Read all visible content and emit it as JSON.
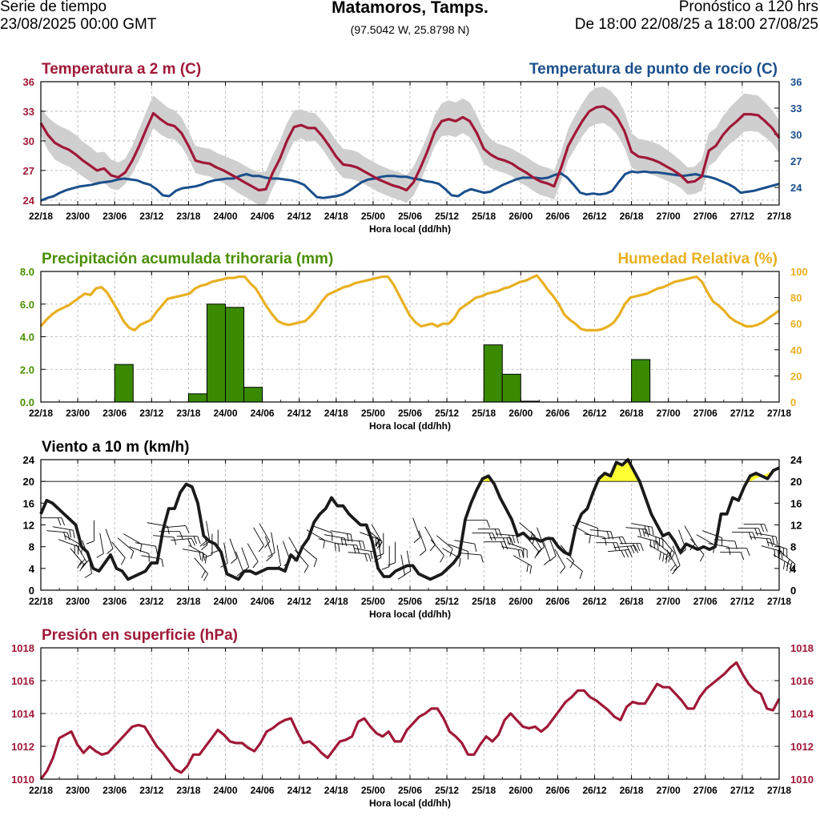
{
  "header": {
    "left_line1": "Serie de tiempo",
    "left_line2": "23/08/2025 00:00 GMT",
    "title": "Matamoros, Tamps.",
    "coords": "(97.5042 W, 25.8798 N)",
    "right_line1": "Pronóstico a 120 hrs",
    "right_line2": "De 18:00 22/08/25 a 18:00 27/08/25"
  },
  "colors": {
    "temp": "#a01838",
    "dew": "#1a4f8c",
    "precip": "#3a8a00",
    "precip_text": "#4a8f00",
    "rh": "#e8b020",
    "wind": "#1a1a1a",
    "highlight": "#ffff33",
    "band": "#cfcfcf",
    "pressure": "#a01838"
  },
  "chart_data": [
    {
      "type": "line",
      "title": "Temperatura a 2 m (C)",
      "title_right": "Temperatura de punto de rocío (C)",
      "xlabel": "Hora local (dd/hh)",
      "x_ticks": [
        "22/18",
        "23/00",
        "23/06",
        "23/12",
        "23/18",
        "24/00",
        "24/06",
        "24/12",
        "24/18",
        "25/00",
        "25/06",
        "25/12",
        "25/18",
        "26/00",
        "26/06",
        "26/12",
        "26/18",
        "27/00",
        "27/06",
        "27/12",
        "27/18"
      ],
      "ylim": [
        23.5,
        36
      ],
      "y_ticks": [
        24,
        27,
        30,
        33,
        36
      ],
      "ylim_right": [
        22,
        36
      ],
      "y_ticks_right": [
        24,
        27,
        30,
        33,
        36
      ],
      "grid": true,
      "series": [
        {
          "name": "Temperatura a 2 m",
          "axis": "left",
          "values": [
            31.8,
            30.6,
            29.8,
            29.4,
            29.1,
            28.6,
            28.0,
            27.5,
            27.0,
            27.2,
            26.5,
            26.3,
            26.8,
            28.0,
            29.5,
            31.2,
            32.8,
            32.2,
            31.7,
            31.5,
            30.8,
            29.5,
            28.0,
            27.8,
            27.7,
            27.3,
            27.0,
            26.6,
            26.2,
            25.8,
            25.4,
            25.0,
            25.1,
            26.8,
            28.2,
            30.0,
            31.4,
            31.6,
            31.3,
            31.3,
            30.5,
            29.5,
            28.4,
            27.6,
            27.5,
            27.3,
            26.9,
            26.5,
            26.1,
            25.8,
            25.5,
            25.3,
            25.0,
            25.8,
            27.3,
            29.0,
            30.9,
            32.0,
            32.2,
            32.0,
            32.4,
            32.0,
            30.8,
            29.2,
            28.6,
            28.2,
            28.0,
            27.7,
            27.2,
            26.8,
            26.3,
            25.9,
            25.7,
            25.4,
            27.3,
            29.5,
            30.8,
            32.0,
            33.0,
            33.4,
            33.5,
            33.1,
            32.3,
            31.0,
            28.9,
            28.4,
            28.3,
            28.1,
            27.8,
            27.4,
            27.0,
            26.5,
            25.8,
            25.9,
            26.4,
            29.0,
            29.5,
            30.6,
            31.4,
            32.0,
            32.7,
            32.7,
            32.6,
            32.0,
            31.3,
            30.3
          ]
        },
        {
          "name": "Temperatura de punto de rocío",
          "axis": "right",
          "values": [
            22.5,
            22.8,
            23.0,
            23.4,
            23.7,
            23.9,
            24.1,
            24.2,
            24.3,
            24.5,
            24.6,
            24.7,
            24.9,
            25.0,
            24.9,
            24.8,
            24.5,
            24.3,
            23.8,
            23.1,
            23.0,
            23.6,
            23.9,
            24.0,
            24.1,
            24.3,
            24.6,
            24.8,
            24.9,
            25.0,
            25.0,
            25.3,
            25.5,
            25.3,
            25.3,
            25.1,
            25.0,
            25.0,
            24.9,
            24.8,
            24.6,
            24.3,
            23.6,
            22.9,
            22.8,
            22.9,
            23.0,
            23.2,
            23.6,
            24.1,
            24.6,
            24.9,
            25.0,
            25.2,
            25.3,
            25.3,
            25.2,
            25.2,
            25.0,
            24.9,
            24.7,
            24.6,
            24.4,
            23.8,
            23.1,
            23.0,
            23.5,
            23.8,
            23.6,
            23.4,
            23.5,
            23.9,
            24.3,
            24.6,
            24.9,
            25.1,
            25.1,
            25.1,
            25.0,
            25.1,
            25.4,
            25.6,
            25.1,
            24.3,
            23.4,
            23.2,
            23.3,
            23.2,
            23.3,
            23.6,
            24.6,
            25.5,
            25.8,
            25.7,
            25.8,
            25.7,
            25.7,
            25.6,
            25.5,
            25.4,
            25.3,
            25.4,
            25.5,
            25.3,
            25.2,
            25.0,
            24.7,
            24.4,
            24.0,
            23.4,
            23.5,
            23.6,
            23.8,
            24.0,
            24.2,
            24.4
          ]
        }
      ],
      "band_spread": [
        1.5,
        1.8,
        2.0,
        2.0,
        2.0,
        2.0,
        1.9,
        1.9,
        1.8,
        1.7,
        1.6,
        1.5,
        1.4,
        1.5,
        1.7,
        1.8,
        1.8,
        1.8,
        1.7,
        1.6,
        1.6,
        1.5,
        1.5,
        1.5,
        1.5,
        1.5,
        1.5,
        1.6,
        1.7,
        1.7,
        1.7,
        1.8,
        1.8,
        1.8,
        1.8,
        1.8,
        1.7,
        1.6,
        1.6,
        1.5,
        1.5,
        1.6,
        1.6,
        1.6,
        1.6,
        1.6,
        1.5,
        1.5,
        1.5,
        1.5,
        1.5,
        1.5,
        1.5,
        1.6,
        1.6,
        1.6,
        1.7,
        1.8,
        1.9,
        1.9,
        1.9,
        1.9,
        1.8,
        1.8,
        1.6,
        1.5,
        1.5,
        1.5,
        1.6,
        1.6,
        1.6,
        1.6,
        1.6,
        1.6,
        1.6,
        1.7,
        1.8,
        1.8,
        1.9,
        2.0,
        2.0,
        2.0,
        2.0,
        2.0,
        1.9,
        1.8,
        1.8,
        1.8,
        1.8,
        1.7,
        1.6,
        1.5,
        1.5,
        1.5,
        1.7,
        1.8,
        1.8,
        1.9,
        2.0,
        2.1,
        2.1,
        2.0,
        2.0,
        1.9,
        1.8,
        1.8,
        1.7,
        1.7
      ]
    },
    {
      "type": "bar",
      "title": "Precipitación acumulada trihoraria (mm)",
      "title_right": "Humedad Relativa (%)",
      "xlabel": "Hora local (dd/hh)",
      "x_ticks": [
        "22/18",
        "23/00",
        "23/06",
        "23/12",
        "23/18",
        "24/00",
        "24/06",
        "24/12",
        "24/18",
        "25/00",
        "25/06",
        "25/12",
        "25/18",
        "26/00",
        "26/06",
        "26/12",
        "26/18",
        "27/00",
        "27/06",
        "27/12",
        "27/18"
      ],
      "ylim": [
        0,
        8
      ],
      "y_ticks": [
        "0.0",
        "2.0",
        "4.0",
        "6.0",
        "8.0"
      ],
      "ylim_right": [
        0,
        100
      ],
      "y_ticks_right": [
        0,
        20,
        40,
        60,
        80,
        100
      ],
      "bars": [
        {
          "start_hour": 12,
          "value": 2.3
        },
        {
          "start_hour": 24,
          "value": 0.5
        },
        {
          "start_hour": 27,
          "value": 6.0
        },
        {
          "start_hour": 30,
          "value": 5.8
        },
        {
          "start_hour": 33,
          "value": 0.9
        },
        {
          "start_hour": 72,
          "value": 3.5
        },
        {
          "start_hour": 75,
          "value": 1.7
        },
        {
          "start_hour": 78,
          "value": 0.05
        },
        {
          "start_hour": 96,
          "value": 2.6
        }
      ],
      "rh_series": [
        {
          "name": "Humedad Relativa",
          "axis": "right",
          "values": [
            58,
            63,
            67,
            70,
            72,
            74,
            77,
            80,
            83,
            82,
            87,
            88,
            84,
            77,
            70,
            62,
            57,
            55,
            59,
            61,
            63,
            69,
            74,
            79,
            80,
            81,
            82,
            83,
            87,
            89,
            90,
            92,
            93,
            94,
            95,
            95,
            96,
            96,
            91,
            87,
            80,
            73,
            67,
            62,
            60,
            59,
            60,
            61,
            62,
            66,
            71,
            77,
            82,
            84,
            86,
            88,
            89,
            91,
            92,
            93,
            94,
            95,
            96,
            96,
            90,
            82,
            74,
            66,
            61,
            58,
            59,
            60,
            58,
            60,
            60,
            64,
            71,
            74,
            77,
            80,
            81,
            83,
            84,
            85,
            87,
            88,
            90,
            92,
            93,
            95,
            97,
            92,
            86,
            81,
            75,
            67,
            63,
            60,
            56,
            55,
            55,
            55,
            56,
            58,
            61,
            67,
            75,
            80,
            81,
            82,
            83,
            85,
            87,
            88,
            90,
            92,
            93,
            94,
            95,
            96,
            92,
            84,
            77,
            74,
            70,
            65,
            62,
            60,
            58,
            58,
            59,
            61,
            64,
            67,
            70
          ]
        }
      ]
    },
    {
      "type": "line",
      "title": "Viento a 10 m (km/h)",
      "xlabel": "Hora local (dd/hh)",
      "x_ticks": [
        "22/18",
        "23/00",
        "23/06",
        "23/12",
        "23/18",
        "24/00",
        "24/06",
        "24/12",
        "24/18",
        "25/00",
        "25/06",
        "25/12",
        "25/18",
        "26/00",
        "26/06",
        "26/12",
        "26/18",
        "27/00",
        "27/06",
        "27/12",
        "27/18"
      ],
      "ylim": [
        0,
        24
      ],
      "y_ticks": [
        0,
        4,
        8,
        12,
        16,
        20,
        24
      ],
      "threshold": 20,
      "series": [
        {
          "name": "Viento a 10 m",
          "values": [
            14,
            16.5,
            16,
            15,
            14,
            13,
            12,
            8,
            7,
            4,
            3.5,
            5,
            6.5,
            4,
            3.5,
            2,
            2.5,
            3,
            3.5,
            5,
            5,
            11,
            15,
            15,
            18,
            19.5,
            19,
            16,
            10,
            9,
            8.5,
            7,
            3,
            2.5,
            2,
            3.5,
            3.5,
            3,
            3.5,
            4,
            4,
            4,
            3.5,
            6.5,
            5.5,
            8,
            9.5,
            12.5,
            14,
            15,
            17,
            15.5,
            15.5,
            14,
            13,
            12,
            12,
            9,
            4,
            2.5,
            2.5,
            3.5,
            4,
            4.5,
            4.5,
            3,
            2.5,
            2,
            2.5,
            3,
            4,
            5,
            6.5,
            13,
            16,
            18.5,
            20.5,
            21,
            19.5,
            17,
            15,
            13,
            10,
            10.5,
            9.5,
            9.5,
            9,
            9.5,
            9.5,
            8,
            7,
            6.5,
            11.5,
            14,
            15,
            18,
            20.5,
            21.5,
            21,
            23.5,
            23,
            24,
            22,
            20,
            17,
            14,
            12,
            10,
            10.5,
            9,
            7,
            8.5,
            8,
            7.5,
            8,
            7.5,
            8,
            14,
            14,
            17,
            16.5,
            19,
            21,
            21.5,
            21,
            20.5,
            22,
            22.5
          ]
        }
      ]
    },
    {
      "type": "line",
      "title": "Presión en superficie (hPa)",
      "xlabel": "Hora local (dd/hh)",
      "x_ticks": [
        "22/18",
        "23/00",
        "23/06",
        "23/12",
        "23/18",
        "24/00",
        "24/06",
        "24/12",
        "24/18",
        "25/00",
        "25/06",
        "25/12",
        "25/18",
        "26/00",
        "26/06",
        "26/12",
        "26/18",
        "27/00",
        "27/06",
        "27/12",
        "27/18"
      ],
      "ylim": [
        1010,
        1018
      ],
      "y_ticks": [
        1010,
        1012,
        1014,
        1016,
        1018
      ],
      "grid": true,
      "series": [
        {
          "name": "Presión en superficie",
          "values": [
            1010,
            1010.5,
            1011.3,
            1012.5,
            1012.7,
            1012.9,
            1012.1,
            1011.6,
            1012.0,
            1011.7,
            1011.5,
            1011.6,
            1012.0,
            1012.4,
            1012.8,
            1013.2,
            1013.3,
            1013.2,
            1012.6,
            1012.0,
            1011.6,
            1011.1,
            1010.6,
            1010.4,
            1010.8,
            1011.5,
            1011.5,
            1012.0,
            1012.5,
            1013.0,
            1012.7,
            1012.3,
            1012.2,
            1012.2,
            1011.9,
            1011.7,
            1012.2,
            1012.9,
            1013.1,
            1013.4,
            1013.6,
            1013.7,
            1012.9,
            1012.2,
            1012.3,
            1012.0,
            1011.6,
            1011.3,
            1011.8,
            1012.3,
            1012.4,
            1012.6,
            1013.5,
            1013.7,
            1013.2,
            1012.8,
            1012.6,
            1012.9,
            1012.3,
            1012.3,
            1013.0,
            1013.4,
            1013.8,
            1014.0,
            1014.3,
            1014.3,
            1013.7,
            1012.9,
            1012.6,
            1012.2,
            1011.5,
            1011.5,
            1012.1,
            1012.6,
            1012.3,
            1012.7,
            1013.6,
            1014.0,
            1013.6,
            1013.2,
            1013.1,
            1013.2,
            1012.9,
            1013.2,
            1013.7,
            1014.2,
            1014.7,
            1015.0,
            1015.4,
            1015.4,
            1015.0,
            1014.8,
            1014.5,
            1014.2,
            1013.8,
            1013.6,
            1014.4,
            1014.7,
            1014.6,
            1014.6,
            1015.2,
            1015.8,
            1015.6,
            1015.6,
            1015.2,
            1014.8,
            1014.3,
            1014.3,
            1015.0,
            1015.5,
            1015.8,
            1016.1,
            1016.4,
            1016.8,
            1017.1,
            1016.4,
            1015.8,
            1015.4,
            1015.2,
            1014.3,
            1014.2,
            1014.9
          ]
        }
      ]
    }
  ],
  "wind_barbs": {
    "note": "direction in degrees (where wind comes from) and speed kt",
    "dir": [
      90,
      95,
      100,
      110,
      120,
      140,
      150,
      160,
      170,
      180,
      170,
      160,
      140,
      130,
      120,
      110,
      100,
      100,
      100,
      95,
      90,
      85,
      85,
      90,
      100,
      120,
      140,
      160,
      170,
      180,
      180,
      170,
      160,
      160,
      160,
      150,
      150,
      150,
      160,
      170,
      170,
      160,
      150,
      140,
      130,
      120,
      110,
      105,
      100,
      100,
      95,
      95,
      95,
      100,
      110,
      130,
      150,
      170,
      180,
      180,
      180,
      170,
      170,
      160,
      160,
      150,
      140,
      130,
      120,
      110,
      100,
      95,
      90,
      90,
      90,
      90,
      90,
      95,
      100,
      110,
      120,
      130,
      140,
      150,
      160,
      160,
      160,
      150,
      140,
      130,
      120,
      110,
      100,
      95,
      90,
      85,
      85,
      85,
      90,
      95,
      100,
      105,
      110,
      120,
      130,
      140,
      150,
      160,
      160,
      150,
      140,
      120,
      110,
      100,
      95,
      90,
      90,
      90,
      90,
      90,
      95,
      100,
      105,
      110,
      120,
      130
    ],
    "speed": [
      14,
      16.5,
      16,
      15,
      14,
      13,
      12,
      8,
      7,
      4,
      3.5,
      5,
      6.5,
      4,
      3.5,
      2,
      2.5,
      3,
      3.5,
      5,
      5,
      11,
      15,
      15,
      18,
      19.5,
      19,
      16,
      10,
      9,
      8.5,
      7,
      3,
      2.5,
      2,
      3.5,
      3.5,
      3,
      3.5,
      4,
      4,
      4,
      3.5,
      6.5,
      5.5,
      8,
      9.5,
      12.5,
      14,
      15,
      17,
      15.5,
      15.5,
      14,
      13,
      12,
      12,
      9,
      4,
      2.5,
      2.5,
      3.5,
      4,
      4.5,
      4.5,
      3,
      2.5,
      2,
      2.5,
      3,
      4,
      5,
      6.5,
      13,
      16,
      18.5,
      20.5,
      21,
      19.5,
      17,
      15,
      13,
      10,
      10.5,
      9.5,
      9.5,
      9,
      9.5,
      9.5,
      8,
      7,
      6.5,
      11.5,
      14,
      15,
      18,
      20.5,
      21.5,
      21,
      23.5,
      23,
      24,
      22,
      20,
      17,
      14,
      12,
      10,
      10.5,
      9,
      7,
      8.5,
      8,
      7.5,
      8,
      7.5,
      8,
      14,
      14,
      17,
      16.5,
      19,
      21,
      21.5,
      21,
      20.5,
      22,
      22.5
    ]
  }
}
